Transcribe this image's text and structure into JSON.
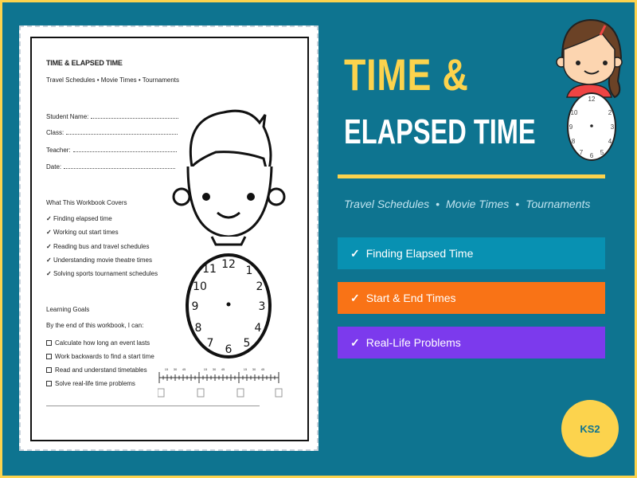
{
  "worksheet": {
    "title": "TIME & ELAPSED TIME",
    "subtitle": "Travel Schedules • Movie Times • Tournaments",
    "fields": [
      "Student Name:",
      "Class:",
      "Teacher:",
      "Date:"
    ],
    "covers_heading": "What This Workbook Covers",
    "covers": [
      "Finding elapsed time",
      "Working out start times",
      "Reading bus and travel schedules",
      "Understanding movie theatre times",
      "Solving sports tournament schedules"
    ],
    "goals_heading": "Learning Goals",
    "goals_intro": "By the end of this workbook, I can:",
    "goals": [
      "Calculate how long an event lasts",
      "Work backwards to find a start time",
      "Read and understand timetables",
      "Solve real-life time problems"
    ],
    "check_icon": "✓",
    "clock_numbers": [
      "12",
      "1",
      "2",
      "3",
      "4",
      "5",
      "6",
      "7",
      "8",
      "9",
      "10",
      "11"
    ],
    "timeline_labels": [
      "15",
      "30",
      "45"
    ]
  },
  "cover": {
    "title_line1": "TIME &",
    "title_line2": "ELAPSED TIME",
    "subtitle_items": [
      "Travel Schedules",
      "•",
      "Movie Times",
      "•",
      "Tournaments"
    ],
    "features": [
      {
        "check": "✓",
        "label": "Finding Elapsed Time",
        "color": "#0891b2"
      },
      {
        "check": "✓",
        "label": "Start & End Times",
        "color": "#f97316"
      },
      {
        "check": "✓",
        "label": "Real-Life Problems",
        "color": "#7c3aed"
      }
    ],
    "badge": "KS2",
    "colors": {
      "background": "#0e7490",
      "accent": "#fcd34d"
    }
  }
}
